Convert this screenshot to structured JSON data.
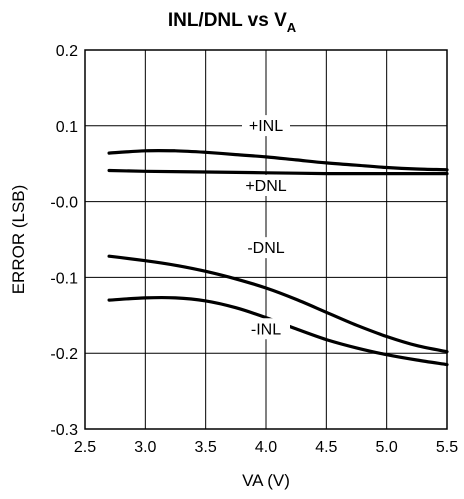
{
  "chart_data": {
    "type": "line",
    "title": "INL/DNL vs V",
    "title_subscript": "A",
    "xlabel": "VA (V)",
    "ylabel": "ERROR (LSB)",
    "xlim": [
      2.5,
      5.5
    ],
    "ylim": [
      -0.3,
      0.2
    ],
    "grid": true,
    "x_ticks": [
      "2.5",
      "3.0",
      "3.5",
      "4.0",
      "4.5",
      "5.0",
      "5.5"
    ],
    "y_ticks": [
      "0.2",
      "0.1",
      "-0.0",
      "-0.1",
      "-0.2",
      "-0.3"
    ],
    "series": [
      {
        "name": "+INL",
        "x": [
          2.7,
          3.0,
          3.25,
          3.5,
          3.75,
          4.0,
          4.25,
          4.5,
          4.75,
          5.0,
          5.25,
          5.5
        ],
        "y": [
          0.064,
          0.067,
          0.067,
          0.065,
          0.062,
          0.059,
          0.055,
          0.051,
          0.048,
          0.045,
          0.043,
          0.042
        ]
      },
      {
        "name": "+DNL",
        "x": [
          2.7,
          3.0,
          3.5,
          4.0,
          4.5,
          5.0,
          5.5
        ],
        "y": [
          0.041,
          0.04,
          0.039,
          0.038,
          0.037,
          0.037,
          0.037
        ]
      },
      {
        "name": "-DNL",
        "x": [
          2.7,
          3.0,
          3.25,
          3.5,
          3.75,
          4.0,
          4.25,
          4.5,
          4.75,
          5.0,
          5.25,
          5.5
        ],
        "y": [
          -0.072,
          -0.078,
          -0.084,
          -0.092,
          -0.102,
          -0.114,
          -0.129,
          -0.146,
          -0.163,
          -0.178,
          -0.19,
          -0.198
        ]
      },
      {
        "name": "-INL",
        "x": [
          2.7,
          3.0,
          3.25,
          3.5,
          3.75,
          4.0,
          4.25,
          4.5,
          4.75,
          5.0,
          5.25,
          5.5
        ],
        "y": [
          -0.13,
          -0.127,
          -0.127,
          -0.131,
          -0.14,
          -0.153,
          -0.168,
          -0.182,
          -0.193,
          -0.202,
          -0.209,
          -0.215
        ]
      }
    ],
    "annotations": [
      "+INL",
      "+DNL",
      "-DNL",
      "-INL"
    ]
  }
}
